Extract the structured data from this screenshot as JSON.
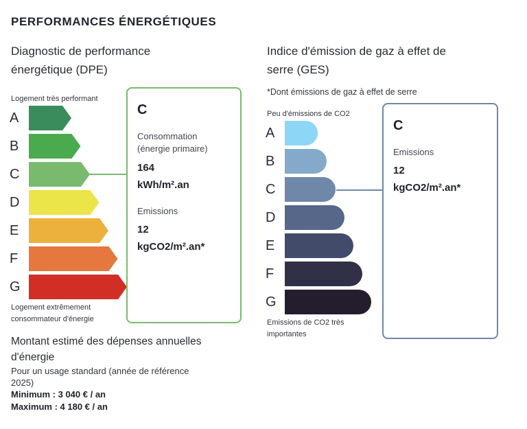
{
  "section_title": "PERFORMANCES ÉNERGÉTIQUES",
  "dpe": {
    "title_line1": "Diagnostic de performance",
    "title_line2": "énergétique (DPE)",
    "top_label": "Logement très performant",
    "bottom_label_line1": "Logement extrêmement",
    "bottom_label_line2": "consommateur d'énergie",
    "classes": [
      {
        "letter": "A",
        "color": "#3a8c5c"
      },
      {
        "letter": "B",
        "color": "#4aaa4e"
      },
      {
        "letter": "C",
        "color": "#79ba6e"
      },
      {
        "letter": "D",
        "color": "#ebe54a"
      },
      {
        "letter": "E",
        "color": "#ecb13d"
      },
      {
        "letter": "F",
        "color": "#e5783e"
      },
      {
        "letter": "G",
        "color": "#d12e25"
      }
    ],
    "selected_class": "C",
    "box_border_color": "#79ba6e",
    "consumption_label_line1": "Consommation",
    "consumption_label_line2": "(énergie primaire)",
    "consumption_value": "164",
    "consumption_unit": "kWh/m².an",
    "emissions_label": "Emissions",
    "emissions_value": "12",
    "emissions_unit": "kgCO2/m².an*"
  },
  "ges": {
    "title_line1": "Indice d'émission de gaz à effet de",
    "title_line2": "serre (GES)",
    "note": "*Dont émissions de gaz à effet de serre",
    "top_label": "Peu d'émissions de CO2",
    "bottom_label_line1": "Emissions de CO2 très",
    "bottom_label_line2": "importantes",
    "classes": [
      {
        "letter": "A",
        "color": "#8ed6f5"
      },
      {
        "letter": "B",
        "color": "#84a9cb"
      },
      {
        "letter": "C",
        "color": "#6f87a8"
      },
      {
        "letter": "D",
        "color": "#56678a"
      },
      {
        "letter": "E",
        "color": "#434b6b"
      },
      {
        "letter": "F",
        "color": "#303146"
      },
      {
        "letter": "G",
        "color": "#231d2e"
      }
    ],
    "selected_class": "C",
    "box_border_color": "#6f87a8",
    "emissions_label": "Emissions",
    "emissions_value": "12",
    "emissions_unit": "kgCO2/m².an*"
  },
  "budget": {
    "title_line1": "Montant estimé des dépenses annuelles",
    "title_line2": "d'énergie",
    "subtitle_line1": "Pour un usage standard (année de référence",
    "subtitle_line2": "2025)",
    "minimum": "Minimum : 3 040 € / an",
    "maximum": "Maximum : 4 180 € / an"
  }
}
